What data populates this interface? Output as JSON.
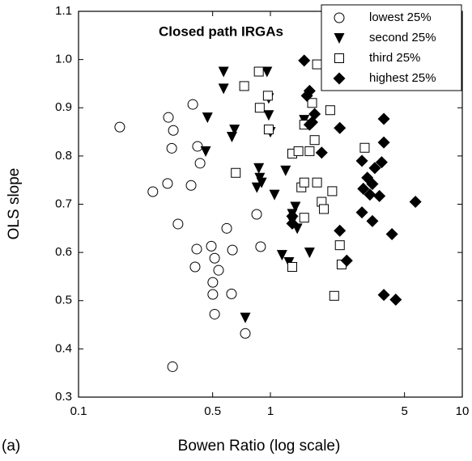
{
  "chart_data": {
    "type": "scatter",
    "title": "Closed path IRGAs",
    "panel_label": "(a)",
    "x_label": "Bowen Ratio (log scale)",
    "y_label": "OLS slope",
    "x_scale": "log",
    "xlim": [
      0.1,
      10
    ],
    "ylim": [
      0.3,
      1.1
    ],
    "xticks": [
      0.1,
      0.5,
      1,
      5,
      10
    ],
    "yticks": [
      0.3,
      0.4,
      0.5,
      0.6,
      0.7,
      0.8,
      0.9,
      {
        "value": 1,
        "label": "1.0"
      },
      1.1
    ],
    "legend_position": "upper right",
    "series": [
      {
        "name": "lowest 25%",
        "color": "#000000",
        "marker": "circle-open",
        "x": [
          0.164,
          0.294,
          0.312,
          0.306,
          0.394,
          0.417,
          0.43,
          0.386,
          0.291,
          0.244,
          0.33,
          0.592,
          0.848,
          0.413,
          0.492,
          0.634,
          0.889,
          0.405,
          0.512,
          0.537,
          0.501,
          0.501,
          0.627,
          0.512,
          0.74,
          0.309
        ],
        "values": [
          0.86,
          0.88,
          0.853,
          0.816,
          0.907,
          0.82,
          0.785,
          0.739,
          0.743,
          0.726,
          0.659,
          0.65,
          0.679,
          0.607,
          0.613,
          0.605,
          0.612,
          0.57,
          0.588,
          0.563,
          0.538,
          0.513,
          0.514,
          0.472,
          0.432,
          0.363
        ]
      },
      {
        "name": "second 25%",
        "color": "#000000",
        "marker": "triangle-down-filled",
        "x": [
          0.57,
          0.57,
          0.47,
          0.46,
          0.63,
          0.65,
          0.96,
          0.98,
          0.98,
          1.0,
          0.87,
          0.88,
          0.85,
          0.9,
          1.2,
          1.05,
          1.35,
          1.3,
          1.38,
          1.15,
          1.25,
          1.6,
          0.74,
          1.5,
          1.3
        ],
        "values": [
          0.975,
          0.94,
          0.88,
          0.81,
          0.84,
          0.855,
          0.975,
          0.92,
          0.885,
          0.85,
          0.775,
          0.755,
          0.735,
          0.745,
          0.77,
          0.72,
          0.695,
          0.665,
          0.65,
          0.595,
          0.58,
          0.6,
          0.465,
          0.875,
          0.68
        ]
      },
      {
        "name": "third 25%",
        "color": "#000000",
        "marker": "square-open",
        "x": [
          0.87,
          0.73,
          1.75,
          0.88,
          0.97,
          0.98,
          1.5,
          1.65,
          2.05,
          1.7,
          1.6,
          1.3,
          1.4,
          0.66,
          1.45,
          1.5,
          1.75,
          1.85,
          2.1,
          1.9,
          1.5,
          3.1,
          2.35,
          1.3,
          2.3,
          2.15
        ],
        "values": [
          0.975,
          0.945,
          0.99,
          0.9,
          0.925,
          0.855,
          0.865,
          0.91,
          0.895,
          0.833,
          0.81,
          0.805,
          0.81,
          0.765,
          0.735,
          0.745,
          0.745,
          0.705,
          0.727,
          0.69,
          0.672,
          0.817,
          0.575,
          0.57,
          0.615,
          0.51
        ]
      },
      {
        "name": "highest 25%",
        "color": "#000000",
        "marker": "diamond-filled",
        "x": [
          1.5,
          1.55,
          1.6,
          1.7,
          1.65,
          1.6,
          1.85,
          2.3,
          3.0,
          3.9,
          3.9,
          3.8,
          3.5,
          3.4,
          3.2,
          3.05,
          3.3,
          3.7,
          5.7,
          3.0,
          3.4,
          2.3,
          1.3,
          1.3,
          4.3,
          2.5,
          3.9,
          4.5
        ],
        "values": [
          0.998,
          0.925,
          0.935,
          0.887,
          0.87,
          0.865,
          0.807,
          0.858,
          0.79,
          0.877,
          0.828,
          0.787,
          0.775,
          0.742,
          0.755,
          0.732,
          0.72,
          0.717,
          0.705,
          0.683,
          0.665,
          0.645,
          0.675,
          0.66,
          0.638,
          0.583,
          0.512,
          0.502
        ]
      }
    ]
  }
}
